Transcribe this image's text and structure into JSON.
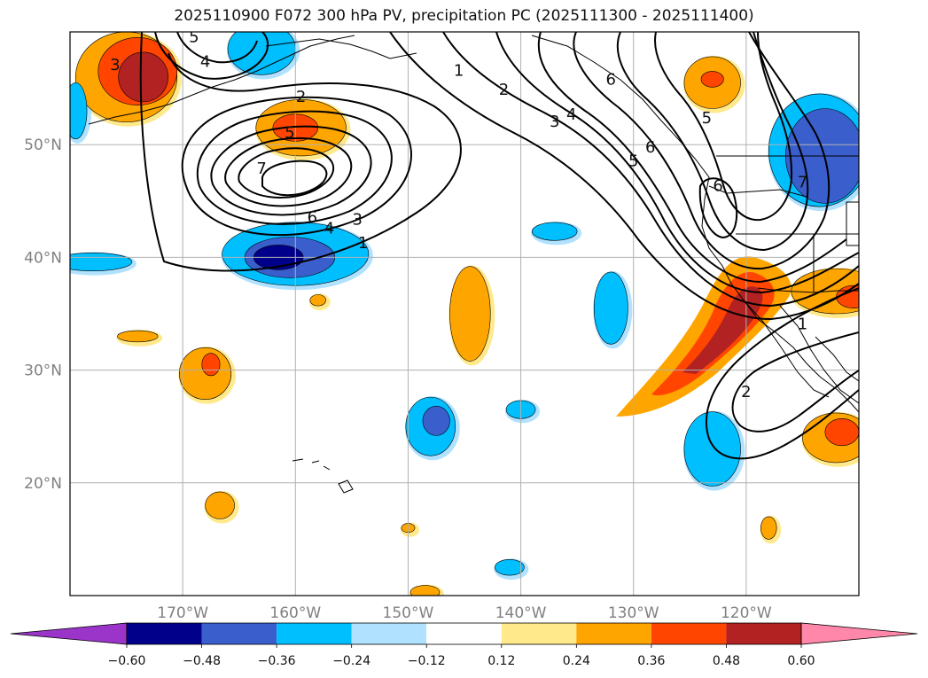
{
  "title": "2025110900 F072 300 hPa PV, precipitation PC (2025111300 - 2025111400)",
  "map": {
    "lon_range": [
      -180,
      -110
    ],
    "lat_range": [
      10,
      60
    ],
    "lat_labels": [
      "50°N",
      "40°N",
      "30°N",
      "20°N"
    ],
    "lat_values": [
      50,
      40,
      30,
      20
    ],
    "lon_labels": [
      "170°W",
      "160°W",
      "150°W",
      "140°W",
      "130°W",
      "120°W"
    ],
    "lon_values": [
      -170,
      -160,
      -150,
      -140,
      -130,
      -120
    ]
  },
  "colorbar": {
    "ticks": [
      "−0.60",
      "−0.48",
      "−0.36",
      "−0.24",
      "−0.12",
      "0.12",
      "0.24",
      "0.36",
      "0.48",
      "0.60"
    ],
    "colors": [
      "#9b35c9",
      "#00008b",
      "#3a5fcd",
      "#00bfff",
      "#b0e2ff",
      "#ffffff",
      "#ffe98a",
      "#ffa500",
      "#ff4500",
      "#b22222",
      "#ff88aa"
    ]
  },
  "pv_contour_labels": [
    {
      "text": "3",
      "lon": -176.0,
      "lat": 57.0
    },
    {
      "text": "4",
      "lon": -168.0,
      "lat": 57.3
    },
    {
      "text": "5",
      "lon": -169.0,
      "lat": 59.5
    },
    {
      "text": "2",
      "lon": -159.5,
      "lat": 54.2
    },
    {
      "text": "5",
      "lon": -160.5,
      "lat": 51.0
    },
    {
      "text": "7",
      "lon": -163.0,
      "lat": 47.8
    },
    {
      "text": "6",
      "lon": -158.5,
      "lat": 43.5
    },
    {
      "text": "4",
      "lon": -157.0,
      "lat": 42.5
    },
    {
      "text": "3",
      "lon": -154.5,
      "lat": 43.3
    },
    {
      "text": "1",
      "lon": -154.0,
      "lat": 41.2
    },
    {
      "text": "1",
      "lon": -145.5,
      "lat": 56.5
    },
    {
      "text": "2",
      "lon": -141.5,
      "lat": 54.8
    },
    {
      "text": "3",
      "lon": -137.0,
      "lat": 52.0
    },
    {
      "text": "4",
      "lon": -135.5,
      "lat": 52.6
    },
    {
      "text": "6",
      "lon": -132.0,
      "lat": 55.7
    },
    {
      "text": "5",
      "lon": -130.0,
      "lat": 48.5
    },
    {
      "text": "6",
      "lon": -128.5,
      "lat": 49.7
    },
    {
      "text": "5",
      "lon": -123.5,
      "lat": 52.3
    },
    {
      "text": "6",
      "lon": -122.5,
      "lat": 46.3
    },
    {
      "text": "7",
      "lon": -115.0,
      "lat": 46.6
    },
    {
      "text": "1",
      "lon": -115.0,
      "lat": 34.0
    },
    {
      "text": "2",
      "lon": -120.0,
      "lat": 28.0
    }
  ],
  "precip_blobs": [
    {
      "lon": -175.0,
      "lat": 56.0,
      "rx": 4.5,
      "ry": 4.0,
      "color": "#ffa500"
    },
    {
      "lon": -174.0,
      "lat": 56.5,
      "rx": 3.5,
      "ry": 3.0,
      "color": "#ff4500"
    },
    {
      "lon": -173.5,
      "lat": 56.0,
      "rx": 2.2,
      "ry": 2.2,
      "color": "#b22222"
    },
    {
      "lon": -163.0,
      "lat": 58.5,
      "rx": 3.0,
      "ry": 2.3,
      "color": "#00bfff"
    },
    {
      "lon": -159.5,
      "lat": 51.5,
      "rx": 4.0,
      "ry": 2.5,
      "color": "#ffa500"
    },
    {
      "lon": -160.0,
      "lat": 51.5,
      "rx": 2.0,
      "ry": 1.2,
      "color": "#ff4500"
    },
    {
      "lon": -160.0,
      "lat": 40.3,
      "rx": 6.5,
      "ry": 2.8,
      "color": "#00bfff"
    },
    {
      "lon": -160.5,
      "lat": 40.0,
      "rx": 4.0,
      "ry": 1.8,
      "color": "#3a5fcd"
    },
    {
      "lon": -161.5,
      "lat": 40.0,
      "rx": 2.2,
      "ry": 1.1,
      "color": "#00008b"
    },
    {
      "lon": -178.0,
      "lat": 39.6,
      "rx": 3.5,
      "ry": 0.8,
      "color": "#00bfff"
    },
    {
      "lon": -179.5,
      "lat": 53.0,
      "rx": 1.0,
      "ry": 2.5,
      "color": "#00bfff"
    },
    {
      "lon": -174.0,
      "lat": 33.0,
      "rx": 1.8,
      "ry": 0.5,
      "color": "#ffa500"
    },
    {
      "lon": -168.0,
      "lat": 29.7,
      "rx": 2.3,
      "ry": 2.3,
      "color": "#ffa500"
    },
    {
      "lon": -167.5,
      "lat": 30.5,
      "rx": 0.8,
      "ry": 1.0,
      "color": "#ff4500"
    },
    {
      "lon": -166.7,
      "lat": 18.0,
      "rx": 1.3,
      "ry": 1.2,
      "color": "#ffa500"
    },
    {
      "lon": -144.5,
      "lat": 35.0,
      "rx": 1.8,
      "ry": 4.2,
      "color": "#ffa500"
    },
    {
      "lon": -148.0,
      "lat": 25.0,
      "rx": 2.2,
      "ry": 2.6,
      "color": "#00bfff"
    },
    {
      "lon": -147.5,
      "lat": 25.5,
      "rx": 1.2,
      "ry": 1.3,
      "color": "#3a5fcd"
    },
    {
      "lon": -140.0,
      "lat": 26.5,
      "rx": 1.3,
      "ry": 0.8,
      "color": "#00bfff"
    },
    {
      "lon": -141.0,
      "lat": 12.5,
      "rx": 1.3,
      "ry": 0.7,
      "color": "#00bfff"
    },
    {
      "lon": -148.5,
      "lat": 10.3,
      "rx": 1.3,
      "ry": 0.6,
      "color": "#ffa500"
    },
    {
      "lon": -137.0,
      "lat": 42.3,
      "rx": 2.0,
      "ry": 0.8,
      "color": "#00bfff"
    },
    {
      "lon": -132.0,
      "lat": 35.5,
      "rx": 1.5,
      "ry": 3.2,
      "color": "#00bfff"
    },
    {
      "lon": -123.0,
      "lat": 55.5,
      "rx": 2.5,
      "ry": 2.3,
      "color": "#ffa500"
    },
    {
      "lon": -123.0,
      "lat": 55.8,
      "rx": 1.0,
      "ry": 0.7,
      "color": "#ff4500"
    },
    {
      "lon": -113.5,
      "lat": 49.5,
      "rx": 4.5,
      "ry": 5.0,
      "color": "#00bfff"
    },
    {
      "lon": -113.0,
      "lat": 49.0,
      "rx": 3.5,
      "ry": 4.2,
      "color": "#3a5fcd"
    },
    {
      "lon": -123.0,
      "lat": 23.0,
      "rx": 2.5,
      "ry": 3.3,
      "color": "#00bfff"
    },
    {
      "lon": -112.0,
      "lat": 24.0,
      "rx": 3.0,
      "ry": 2.2,
      "color": "#ffa500"
    },
    {
      "lon": -111.5,
      "lat": 24.5,
      "rx": 1.5,
      "ry": 1.2,
      "color": "#ff4500"
    },
    {
      "lon": -112.0,
      "lat": 37.0,
      "rx": 4.0,
      "ry": 2.0,
      "color": "#ffa500"
    },
    {
      "lon": -110.5,
      "lat": 36.5,
      "rx": 1.5,
      "ry": 1.0,
      "color": "#ff4500"
    },
    {
      "lon": -118.0,
      "lat": 16.0,
      "rx": 0.7,
      "ry": 1.0,
      "color": "#ffa500"
    },
    {
      "lon": -158.0,
      "lat": 36.2,
      "rx": 0.7,
      "ry": 0.5,
      "color": "#ffa500"
    },
    {
      "lon": -150.0,
      "lat": 16.0,
      "rx": 0.6,
      "ry": 0.4,
      "color": "#ffa500"
    }
  ],
  "precip_band": {
    "color_outer": "#ffa500",
    "color_mid": "#ff4500",
    "color_inner": "#b22222"
  }
}
